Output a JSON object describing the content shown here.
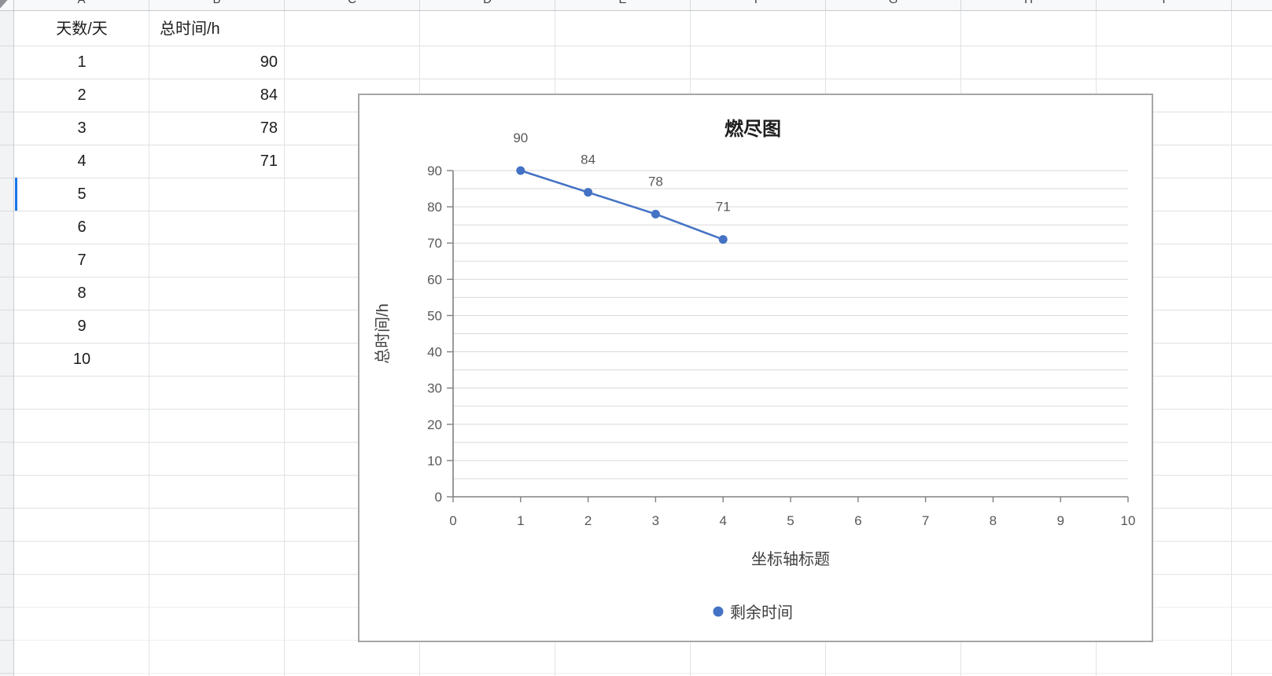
{
  "sheet": {
    "column_headers": [
      "A",
      "B",
      "C",
      "D",
      "E",
      "F",
      "G",
      "H",
      "I"
    ],
    "rows": [
      {
        "a": "天数/天",
        "b": "总时间/h"
      },
      {
        "a": "1",
        "b": "90"
      },
      {
        "a": "2",
        "b": "84"
      },
      {
        "a": "3",
        "b": "78"
      },
      {
        "a": "4",
        "b": "71"
      },
      {
        "a": "5",
        "b": ""
      },
      {
        "a": "6",
        "b": ""
      },
      {
        "a": "7",
        "b": ""
      },
      {
        "a": "8",
        "b": ""
      },
      {
        "a": "9",
        "b": ""
      },
      {
        "a": "10",
        "b": ""
      }
    ],
    "selected_cell": "A6",
    "selection_color": "#1a73e8"
  },
  "chart_data": {
    "type": "line",
    "title": "燃尽图",
    "xlabel": "坐标轴标题",
    "ylabel": "总时间/h",
    "x": [
      1,
      2,
      3,
      4
    ],
    "series": [
      {
        "name": "剩余时间",
        "values": [
          90,
          84,
          78,
          71
        ]
      }
    ],
    "data_labels": [
      "90",
      "84",
      "78",
      "71"
    ],
    "xlim": [
      0,
      10
    ],
    "ylim": [
      0,
      90
    ],
    "x_ticks": [
      0,
      1,
      2,
      3,
      4,
      5,
      6,
      7,
      8,
      9,
      10
    ],
    "y_ticks": [
      0,
      10,
      20,
      30,
      40,
      50,
      60,
      70,
      80,
      90
    ],
    "minor_grid_step": 5,
    "grid": true,
    "legend_position": "bottom",
    "colors": {
      "series": "#4472C4",
      "gridline": "#d9d9d9",
      "axis": "#808080",
      "tick_label": "#595959",
      "title": "#1f1f1f",
      "axis_title": "#404040",
      "chart_border": "#a6a6a6"
    }
  }
}
